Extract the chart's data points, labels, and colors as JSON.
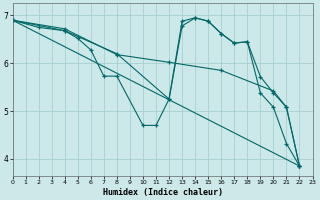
{
  "background_color": "#cce8e8",
  "grid_color": "#a8d0d0",
  "line_color": "#006868",
  "xlim": [
    0,
    23
  ],
  "ylim": [
    3.65,
    7.25
  ],
  "yticks": [
    4,
    5,
    6,
    7
  ],
  "xticks": [
    0,
    1,
    2,
    3,
    4,
    5,
    6,
    7,
    8,
    9,
    10,
    11,
    12,
    13,
    14,
    15,
    16,
    17,
    18,
    19,
    20,
    21,
    22,
    23
  ],
  "xlabel": "Humidex (Indice chaleur)",
  "lines": [
    {
      "x": [
        0,
        2,
        4,
        5,
        6,
        7,
        8,
        10,
        11,
        12,
        13,
        14,
        15,
        16,
        17,
        18,
        19,
        20,
        21,
        22
      ],
      "y": [
        6.9,
        6.75,
        6.68,
        6.52,
        6.28,
        5.73,
        5.73,
        4.7,
        4.7,
        5.25,
        6.88,
        6.95,
        6.88,
        6.62,
        6.42,
        6.45,
        5.38,
        5.08,
        4.32,
        3.85
      ]
    },
    {
      "x": [
        0,
        4,
        8,
        12,
        13,
        14,
        15,
        16,
        17,
        18,
        19,
        20,
        21,
        22
      ],
      "y": [
        6.9,
        6.68,
        6.2,
        5.25,
        6.78,
        6.95,
        6.88,
        6.62,
        6.42,
        6.45,
        5.72,
        5.38,
        5.08,
        3.85
      ]
    },
    {
      "x": [
        0,
        4,
        8,
        12,
        16,
        20,
        21,
        22
      ],
      "y": [
        6.9,
        6.72,
        6.18,
        6.02,
        5.85,
        5.42,
        5.08,
        3.85
      ]
    },
    {
      "x": [
        0,
        22
      ],
      "y": [
        6.9,
        3.85
      ]
    }
  ]
}
